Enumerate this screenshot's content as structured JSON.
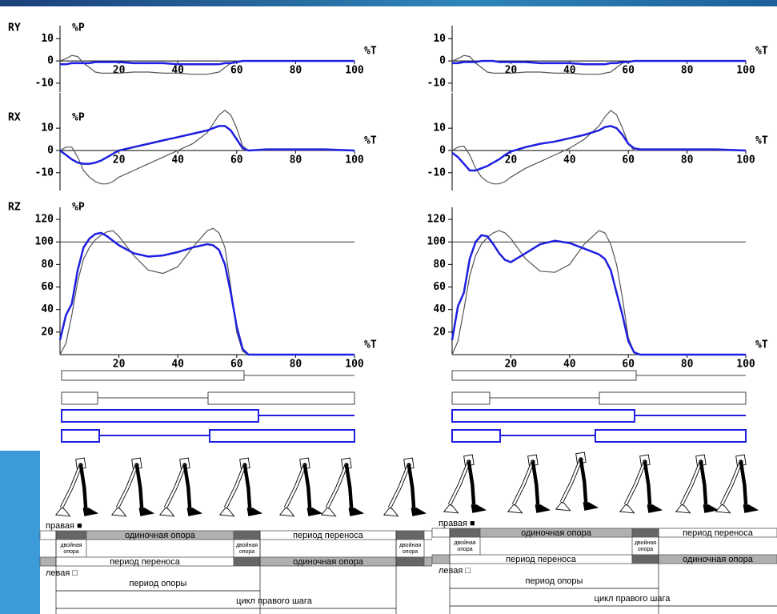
{
  "chart_data": [
    {
      "type": "line",
      "title": "RY",
      "y_label": "%P",
      "x_label": "%T",
      "x": [
        0,
        2,
        4,
        6,
        8,
        10,
        12,
        14,
        16,
        18,
        20,
        25,
        30,
        35,
        40,
        45,
        50,
        52,
        54,
        56,
        58,
        60,
        62,
        64,
        70,
        80,
        90,
        100
      ],
      "xlim": [
        0,
        100
      ],
      "xticks": [
        20,
        40,
        60,
        80,
        100
      ],
      "ylim": [
        -14,
        13
      ],
      "yticks": [
        -10,
        0,
        10
      ],
      "series": [
        {
          "color": "#555555",
          "values": [
            0,
            1,
            2.5,
            2,
            -1,
            -3,
            -5,
            -5.5,
            -5.5,
            -5.5,
            -5.5,
            -5,
            -5,
            -5.5,
            -5.5,
            -6,
            -6,
            -5.5,
            -5,
            -3,
            -1,
            0,
            0,
            0,
            0,
            0,
            0,
            0
          ]
        },
        {
          "color": "#1f1fe0",
          "values": [
            -1.5,
            -1.5,
            -1,
            -1,
            -1,
            -1,
            -0.5,
            -0.5,
            -0.5,
            -0.5,
            -0.5,
            -1,
            -1,
            -1,
            -1.5,
            -1.5,
            -1.5,
            -1.5,
            -1.5,
            -1,
            -1,
            -0.5,
            0,
            0,
            0,
            0,
            0,
            0
          ]
        }
      ]
    },
    {
      "type": "line",
      "title": "RX",
      "y_label": "%P",
      "x_label": "%T",
      "x": [
        0,
        2,
        4,
        6,
        8,
        10,
        12,
        14,
        16,
        18,
        20,
        25,
        30,
        35,
        40,
        45,
        50,
        52,
        54,
        56,
        58,
        60,
        62,
        64,
        70,
        80,
        90,
        100
      ],
      "xlim": [
        0,
        100
      ],
      "xticks": [
        20,
        40,
        60,
        80,
        100
      ],
      "ylim": [
        -18,
        23
      ],
      "yticks": [
        -10,
        0,
        10
      ],
      "series": [
        {
          "color": "#555555",
          "values": [
            0,
            1.5,
            1.5,
            -3,
            -9,
            -12,
            -14,
            -15,
            -15,
            -14,
            -12,
            -9,
            -6,
            -3,
            0,
            3,
            8,
            12,
            16,
            18,
            16,
            10,
            2,
            0,
            0,
            0,
            0,
            0
          ]
        },
        {
          "color": "#1f1fe0",
          "values": [
            0,
            -2,
            -4,
            -5.5,
            -6,
            -6,
            -5.5,
            -4.5,
            -3,
            -1.5,
            0,
            1.5,
            3,
            4.5,
            6,
            7.5,
            9,
            10,
            11,
            11,
            9,
            5,
            1,
            0,
            0.5,
            0.5,
            0.5,
            0
          ]
        }
      ]
    },
    {
      "type": "line",
      "title": "RZ",
      "y_label": "%P",
      "x_label": "%T",
      "x": [
        0,
        2,
        4,
        6,
        8,
        10,
        12,
        14,
        16,
        18,
        20,
        25,
        30,
        35,
        40,
        45,
        50,
        52,
        54,
        56,
        58,
        60,
        62,
        64,
        70,
        80,
        90,
        100
      ],
      "xlim": [
        0,
        100
      ],
      "xticks": [
        20,
        40,
        60,
        80,
        100
      ],
      "ylim": [
        0,
        125
      ],
      "yticks": [
        20,
        40,
        60,
        80,
        100,
        120
      ],
      "hline": 100,
      "series": [
        {
          "color": "#555555",
          "values": [
            0,
            10,
            35,
            65,
            85,
            95,
            102,
            106,
            109,
            110,
            105,
            88,
            75,
            72,
            78,
            95,
            110,
            112,
            108,
            95,
            60,
            20,
            3,
            0,
            0,
            0,
            0,
            0
          ]
        },
        {
          "color": "#1f1fe0",
          "values": [
            13,
            35,
            45,
            75,
            95,
            103,
            107,
            108,
            105,
            101,
            97,
            90,
            87,
            88,
            91,
            95,
            98,
            97,
            93,
            80,
            55,
            25,
            5,
            0,
            0,
            0,
            0,
            0
          ]
        }
      ]
    },
    {
      "type": "line",
      "x_label": "%T",
      "x": [
        0,
        2,
        4,
        6,
        8,
        10,
        12,
        14,
        16,
        18,
        20,
        25,
        30,
        35,
        40,
        45,
        50,
        52,
        54,
        56,
        58,
        60,
        62,
        64,
        70,
        80,
        90,
        100
      ],
      "xlim": [
        0,
        100
      ],
      "xticks": [
        20,
        40,
        60,
        80,
        100
      ],
      "ylim": [
        -14,
        13
      ],
      "yticks": [
        -10,
        0,
        10
      ],
      "series": [
        {
          "color": "#555555",
          "values": [
            0,
            1,
            2.5,
            2,
            -1,
            -3,
            -5,
            -5.5,
            -5.5,
            -5.5,
            -5.5,
            -5,
            -5,
            -5.5,
            -5.5,
            -6,
            -6,
            -5.5,
            -5,
            -3,
            -1,
            0,
            0,
            0,
            0,
            0,
            0,
            0
          ]
        },
        {
          "color": "#1f1fe0",
          "values": [
            -1,
            -1,
            -0.5,
            -0.5,
            -0.5,
            0,
            0,
            0,
            -0.5,
            -0.5,
            -0.5,
            -0.5,
            -1,
            -1,
            -1,
            -1.5,
            -1.5,
            -1.5,
            -1,
            -1,
            -0.5,
            -0.5,
            0,
            0,
            0,
            0,
            0,
            0
          ]
        }
      ]
    },
    {
      "type": "line",
      "x_label": "%T",
      "x": [
        0,
        2,
        4,
        6,
        8,
        10,
        12,
        14,
        16,
        18,
        20,
        25,
        30,
        35,
        40,
        45,
        50,
        52,
        54,
        56,
        58,
        60,
        62,
        64,
        70,
        80,
        90,
        100
      ],
      "xlim": [
        0,
        100
      ],
      "xticks": [
        20,
        40,
        60,
        80,
        100
      ],
      "ylim": [
        -18,
        23
      ],
      "yticks": [
        -10,
        0,
        10
      ],
      "series": [
        {
          "color": "#555555",
          "values": [
            0,
            1.5,
            2,
            -2,
            -8,
            -12,
            -14,
            -15,
            -15,
            -14,
            -12,
            -8,
            -5,
            -2,
            1,
            5,
            11,
            15,
            18,
            16,
            10,
            3,
            0,
            0,
            0,
            0,
            0,
            0
          ]
        },
        {
          "color": "#1f1fe0",
          "values": [
            -1,
            -3,
            -6,
            -9,
            -9,
            -8,
            -7,
            -5.5,
            -4,
            -2,
            -0.5,
            1.5,
            3,
            4,
            5.5,
            7,
            9,
            10.5,
            11,
            10,
            7,
            3,
            1,
            0.5,
            0.5,
            0.5,
            0.5,
            0
          ]
        }
      ]
    },
    {
      "type": "line",
      "x_label": "%T",
      "x": [
        0,
        2,
        4,
        6,
        8,
        10,
        12,
        14,
        16,
        18,
        20,
        25,
        30,
        35,
        40,
        45,
        50,
        52,
        54,
        56,
        58,
        60,
        62,
        64,
        70,
        80,
        90,
        100
      ],
      "xlim": [
        0,
        100
      ],
      "xticks": [
        20,
        40,
        60,
        80,
        100
      ],
      "ylim": [
        0,
        125
      ],
      "yticks": [
        20,
        40,
        60,
        80,
        100,
        120
      ],
      "hline": 100,
      "series": [
        {
          "color": "#555555",
          "values": [
            0,
            12,
            40,
            70,
            88,
            98,
            104,
            108,
            110,
            108,
            103,
            85,
            74,
            73,
            80,
            98,
            110,
            108,
            98,
            80,
            50,
            15,
            2,
            0,
            0,
            0,
            0,
            0
          ]
        },
        {
          "color": "#1f1fe0",
          "values": [
            13,
            43,
            55,
            85,
            100,
            106,
            105,
            98,
            90,
            84,
            82,
            90,
            98,
            101,
            99,
            94,
            89,
            85,
            75,
            55,
            35,
            12,
            2,
            0,
            0,
            0,
            0,
            0
          ]
        }
      ]
    }
  ],
  "gait_diagrams": [
    {
      "right_label": "правая ■",
      "single_support_right": "одиночная опора",
      "swing_right": "период переноса",
      "double_support": [
        "двойная опора",
        "двойная опора",
        "двойная опора"
      ],
      "swing_left": "период переноса",
      "single_support_left": "одиночная опора",
      "left_label": "левая □",
      "stance_period": "период опоры",
      "gait_cycle": "цикл правого шага"
    },
    {
      "right_label": "правая ■",
      "single_support_right": "одиночная опора",
      "swing_right": "период переноса",
      "double_support": [
        "двойная опора",
        "двойная опора"
      ],
      "swing_left": "период переноса",
      "single_support_left": "одиночная опора",
      "left_label": "левая □",
      "stance_period": "период опоры",
      "gait_cycle": "цикл правого шага"
    }
  ]
}
